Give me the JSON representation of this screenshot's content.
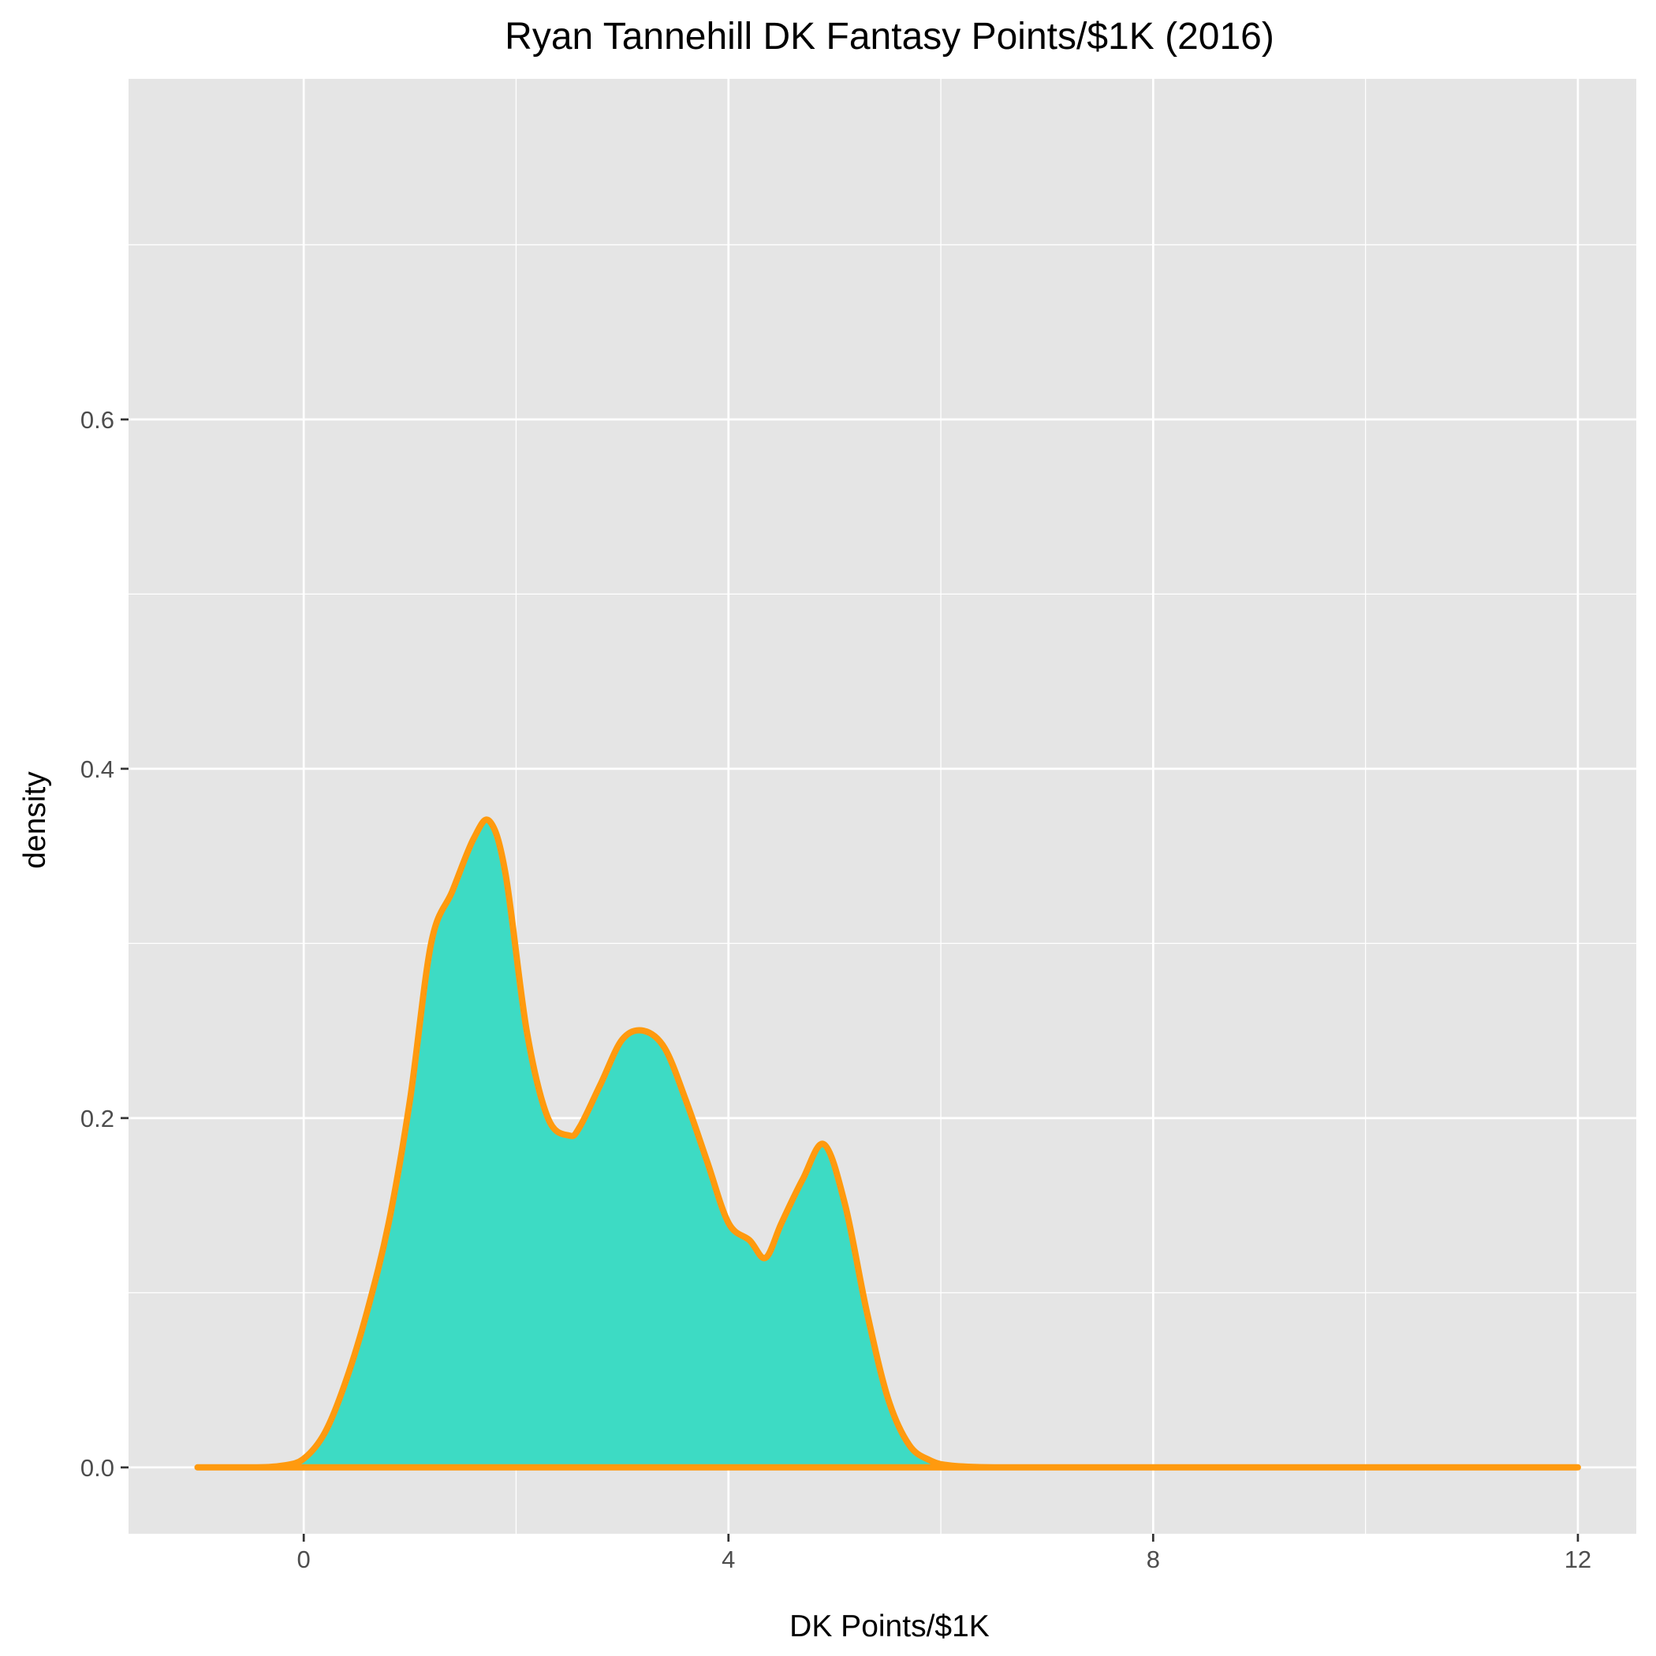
{
  "chart_data": {
    "type": "area",
    "title": "Ryan Tannehill DK Fantasy Points/$1K (2016)",
    "xlabel": "DK Points/$1K",
    "ylabel": "density",
    "xlim": [
      -1.65,
      12.55
    ],
    "ylim": [
      -0.038,
      0.795
    ],
    "x_ticks": [
      0,
      4,
      8,
      12
    ],
    "y_ticks": [
      0.0,
      0.2,
      0.4,
      0.6
    ],
    "x_tick_labels": [
      "0",
      "4",
      "8",
      "12"
    ],
    "y_tick_labels": [
      "0.0",
      "0.2",
      "0.4",
      "0.6"
    ],
    "grid": true,
    "legend": "none",
    "colors": {
      "fill": "#3DDBC4",
      "line": "#FF9A0E",
      "panel": "#E5E5E5",
      "grid": "#FFFFFF"
    },
    "series": [
      {
        "x": [
          -1.0,
          -0.5,
          -0.2,
          0.0,
          0.2,
          0.4,
          0.6,
          0.8,
          1.0,
          1.2,
          1.4,
          1.6,
          1.75,
          1.9,
          2.1,
          2.3,
          2.5,
          2.6,
          2.8,
          3.0,
          3.2,
          3.4,
          3.6,
          3.8,
          4.0,
          4.2,
          4.35,
          4.5,
          4.7,
          4.9,
          5.1,
          5.3,
          5.5,
          5.7,
          5.9,
          6.1,
          6.5,
          7.0,
          8.0,
          10.0,
          12.0
        ],
        "y": [
          0.0,
          0.0,
          0.001,
          0.005,
          0.02,
          0.05,
          0.09,
          0.14,
          0.21,
          0.3,
          0.33,
          0.36,
          0.37,
          0.34,
          0.25,
          0.2,
          0.19,
          0.195,
          0.22,
          0.245,
          0.25,
          0.24,
          0.21,
          0.175,
          0.14,
          0.13,
          0.12,
          0.14,
          0.165,
          0.185,
          0.15,
          0.09,
          0.04,
          0.013,
          0.004,
          0.001,
          0.0,
          0.0,
          0.0,
          0.0,
          0.0
        ]
      }
    ]
  }
}
